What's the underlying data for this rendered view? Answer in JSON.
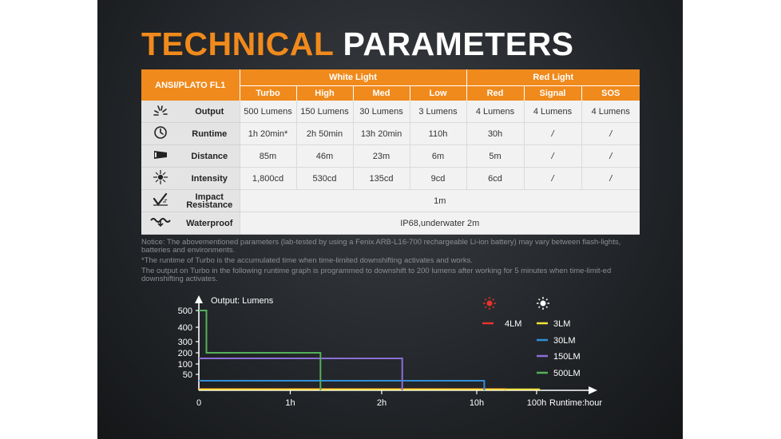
{
  "title": {
    "part1": "TECHNICAL",
    "part2": "PARAMETERS"
  },
  "table": {
    "corner_label": "ANSI/PLATO FL1",
    "groups": [
      "White Light",
      "Red Light"
    ],
    "modes": [
      "Turbo",
      "High",
      "Med",
      "Low",
      "Red",
      "Signal",
      "SOS"
    ],
    "rows": [
      {
        "icon": "output-icon",
        "label": "Output",
        "cells": [
          "500 Lumens",
          "150 Lumens",
          "30 Lumens",
          "3 Lumens",
          "4 Lumens",
          "4 Lumens",
          "4 Lumens"
        ]
      },
      {
        "icon": "runtime-icon",
        "label": "Runtime",
        "cells": [
          "1h 20min*",
          "2h 50min",
          "13h 20min",
          "110h",
          "30h",
          "/",
          "/"
        ]
      },
      {
        "icon": "distance-icon",
        "label": "Distance",
        "cells": [
          "85m",
          "46m",
          "23m",
          "6m",
          "5m",
          "/",
          "/"
        ]
      },
      {
        "icon": "intensity-icon",
        "label": "Intensity",
        "cells": [
          "1,800cd",
          "530cd",
          "135cd",
          "9cd",
          "6cd",
          "/",
          "/"
        ]
      }
    ],
    "impact": {
      "label_line1": "Impact",
      "label_line2": "Resistance",
      "value": "1m"
    },
    "waterproof": {
      "label": "Waterproof",
      "value": "IP68,underwater 2m"
    }
  },
  "notes": [
    "Notice: The abovementioned parameters (lab-tested by using a Fenix ARB-L16-700 rechargeable Li-ion battery) may vary between flash-lights, batteries and environments.",
    "*The runtime of Turbo is the accumulated time when time-limited downshifting activates and works.",
    "The output on Turbo in the following runtime graph is programmed to downshift to 200 lumens after working for 5 minutes when time-limit-ed downshifting activates."
  ],
  "colors": {
    "accent": "#f08a1c",
    "red": "#e8332b",
    "yellow": "#f2e33a",
    "blue": "#2f8fd8",
    "purple": "#8c6fd6",
    "green": "#55b05a"
  },
  "chart_data": {
    "type": "line",
    "ylabel": "Output: Lumens",
    "xlabel": "Runtime:hour",
    "y_ticks": [
      50,
      100,
      200,
      300,
      400,
      500
    ],
    "x_ticks": [
      "0",
      "1h",
      "2h",
      "10h",
      "100h"
    ],
    "x_scale": "piecewise (0–2h linear, then log to 100h)",
    "series": [
      {
        "name": "4LM",
        "color": "#e8332b",
        "x_hours": [
          0,
          30
        ],
        "y": [
          4,
          4
        ]
      },
      {
        "name": "3LM",
        "color": "#f2e33a",
        "x_hours": [
          0,
          110
        ],
        "y": [
          3,
          3
        ]
      },
      {
        "name": "30LM",
        "color": "#2f8fd8",
        "x_hours": [
          0,
          13.33
        ],
        "y": [
          30,
          30
        ]
      },
      {
        "name": "150LM",
        "color": "#8c6fd6",
        "x_hours": [
          0,
          2.83
        ],
        "y": [
          150,
          150
        ]
      },
      {
        "name": "500LM",
        "color": "#55b05a",
        "x_hours": [
          0,
          0.083,
          0.083,
          1.33
        ],
        "y": [
          500,
          500,
          200,
          200
        ]
      }
    ],
    "legend": {
      "red_group": [
        "4LM"
      ],
      "white_group": [
        "3LM",
        "30LM",
        "150LM",
        "500LM"
      ]
    }
  }
}
